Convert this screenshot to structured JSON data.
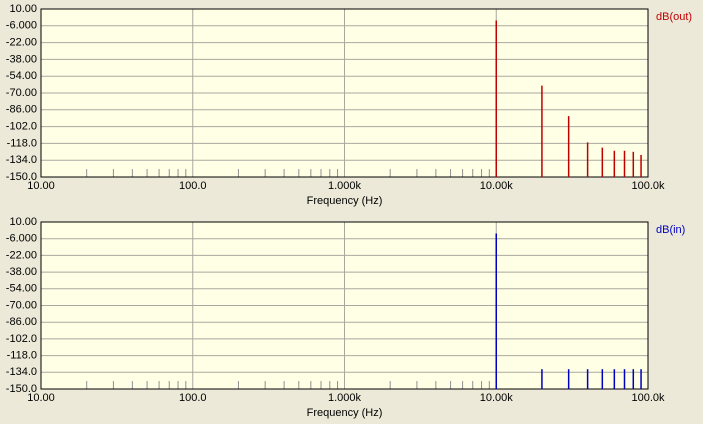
{
  "chart_data": [
    {
      "type": "stem",
      "xlabel": "Frequency (Hz)",
      "xlog": true,
      "xminor": true,
      "grid": true,
      "xlim": [
        10,
        100000
      ],
      "xticks": [
        {
          "value": 10,
          "label": "10.00"
        },
        {
          "value": 100,
          "label": "100.0"
        },
        {
          "value": 1000,
          "label": "1.000k"
        },
        {
          "value": 10000,
          "label": "10.00k"
        },
        {
          "value": 100000,
          "label": "100.0k"
        }
      ],
      "ylim": [
        -150,
        10
      ],
      "yticks": [
        {
          "value": 10,
          "label": "10.00"
        },
        {
          "value": -6,
          "label": "-6.000"
        },
        {
          "value": -22,
          "label": "-22.00"
        },
        {
          "value": -38,
          "label": "-38.00"
        },
        {
          "value": -54,
          "label": "-54.00"
        },
        {
          "value": -70,
          "label": "-70.00"
        },
        {
          "value": -86,
          "label": "-86.00"
        },
        {
          "value": -102,
          "label": "-102.0"
        },
        {
          "value": -118,
          "label": "-118.0"
        },
        {
          "value": -134,
          "label": "-134.0"
        },
        {
          "value": -150,
          "label": "-150.0"
        }
      ],
      "x": [
        10000,
        20000,
        30000,
        40000,
        50000,
        60000,
        70000,
        80000,
        90000
      ],
      "series": [
        {
          "name": "dB(out)",
          "color": "#c00000",
          "values": [
            -1,
            -63,
            -92,
            -117,
            -122,
            -125,
            -125,
            -126,
            -129
          ]
        }
      ]
    },
    {
      "type": "stem",
      "xlabel": "Frequency (Hz)",
      "xlog": true,
      "xminor": true,
      "grid": true,
      "xlim": [
        10,
        100000
      ],
      "xticks": [
        {
          "value": 10,
          "label": "10.00"
        },
        {
          "value": 100,
          "label": "100.0"
        },
        {
          "value": 1000,
          "label": "1.000k"
        },
        {
          "value": 10000,
          "label": "10.00k"
        },
        {
          "value": 100000,
          "label": "100.0k"
        }
      ],
      "ylim": [
        -150,
        10
      ],
      "yticks": [
        {
          "value": 10,
          "label": "10.00"
        },
        {
          "value": -6,
          "label": "-6.000"
        },
        {
          "value": -22,
          "label": "-22.00"
        },
        {
          "value": -38,
          "label": "-38.00"
        },
        {
          "value": -54,
          "label": "-54.00"
        },
        {
          "value": -70,
          "label": "-70.00"
        },
        {
          "value": -86,
          "label": "-86.00"
        },
        {
          "value": -102,
          "label": "-102.0"
        },
        {
          "value": -118,
          "label": "-118.0"
        },
        {
          "value": -134,
          "label": "-134.0"
        },
        {
          "value": -150,
          "label": "-150.0"
        }
      ],
      "x": [
        10000,
        20000,
        30000,
        40000,
        50000,
        60000,
        70000,
        80000,
        90000
      ],
      "series": [
        {
          "name": "dB(in)",
          "color": "#0000c0",
          "values": [
            -1,
            -131,
            -131,
            -131,
            -131,
            -131,
            -131,
            -131,
            -131
          ]
        }
      ]
    }
  ]
}
